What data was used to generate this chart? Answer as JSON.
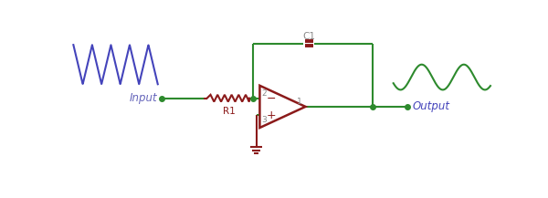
{
  "bg_color": "#ffffff",
  "wire_color": "#2d8a2d",
  "opamp_color": "#8B1A1A",
  "input_wave_color": "#4444bb",
  "output_wave_color": "#2d8a2d",
  "label_input_color": "#6666bb",
  "label_output_color": "#4444bb",
  "resistor_color": "#8B1A1A",
  "capacitor_color": "#8B1A1A",
  "ground_color": "#8B1A1A",
  "node_color": "#2d8a2d",
  "pin_label_color": "#888888",
  "c1_label": "C1",
  "r1_label": "R1",
  "input_label": "Input",
  "output_label": "Output",
  "pin2_label": "2",
  "pin3_label": "3",
  "pin1_label": "1",
  "minus_label": "−",
  "plus_label": "+"
}
